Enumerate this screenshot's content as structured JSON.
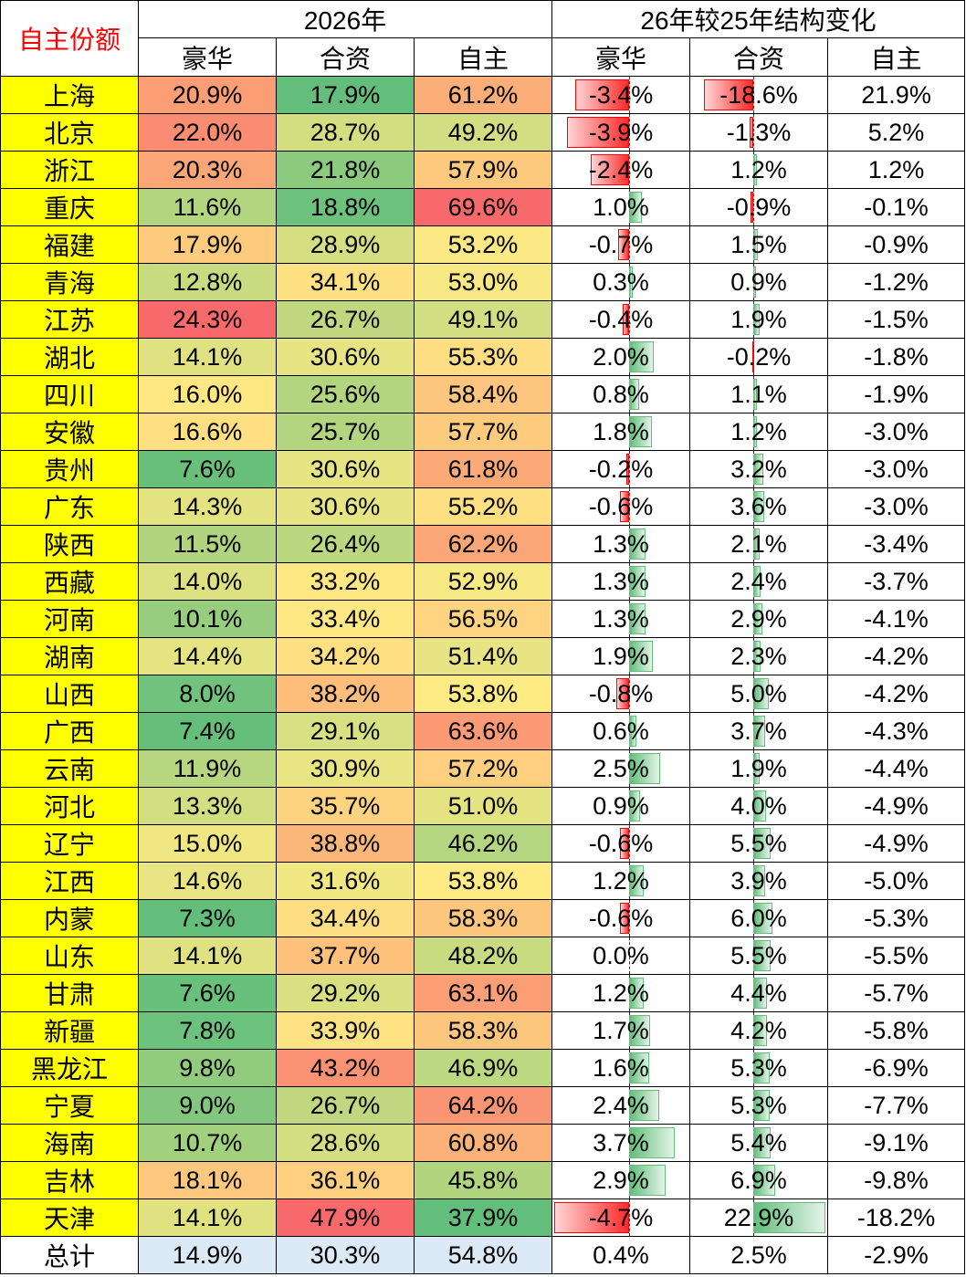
{
  "chart_data": {
    "type": "table",
    "corner_label": "自主份额",
    "group_headers": [
      "2026年",
      "26年较25年结构变化"
    ],
    "sub_headers": [
      "豪华",
      "合资",
      "自主",
      "豪华",
      "合资",
      "自主"
    ],
    "rows": [
      {
        "province": "上海",
        "lux": "20.9%",
        "jv": "17.9%",
        "own": "61.2%",
        "d_lux": "-3.4%",
        "d_jv": "-18.6%",
        "d_own": "21.9%"
      },
      {
        "province": "北京",
        "lux": "22.0%",
        "jv": "28.7%",
        "own": "49.2%",
        "d_lux": "-3.9%",
        "d_jv": "-1.3%",
        "d_own": "5.2%"
      },
      {
        "province": "浙江",
        "lux": "20.3%",
        "jv": "21.8%",
        "own": "57.9%",
        "d_lux": "-2.4%",
        "d_jv": "1.2%",
        "d_own": "1.2%"
      },
      {
        "province": "重庆",
        "lux": "11.6%",
        "jv": "18.8%",
        "own": "69.6%",
        "d_lux": "1.0%",
        "d_jv": "-0.9%",
        "d_own": "-0.1%"
      },
      {
        "province": "福建",
        "lux": "17.9%",
        "jv": "28.9%",
        "own": "53.2%",
        "d_lux": "-0.7%",
        "d_jv": "1.5%",
        "d_own": "-0.9%"
      },
      {
        "province": "青海",
        "lux": "12.8%",
        "jv": "34.1%",
        "own": "53.0%",
        "d_lux": "0.3%",
        "d_jv": "0.9%",
        "d_own": "-1.2%"
      },
      {
        "province": "江苏",
        "lux": "24.3%",
        "jv": "26.7%",
        "own": "49.1%",
        "d_lux": "-0.4%",
        "d_jv": "1.9%",
        "d_own": "-1.5%"
      },
      {
        "province": "湖北",
        "lux": "14.1%",
        "jv": "30.6%",
        "own": "55.3%",
        "d_lux": "2.0%",
        "d_jv": "-0.2%",
        "d_own": "-1.8%"
      },
      {
        "province": "四川",
        "lux": "16.0%",
        "jv": "25.6%",
        "own": "58.4%",
        "d_lux": "0.8%",
        "d_jv": "1.1%",
        "d_own": "-1.9%"
      },
      {
        "province": "安徽",
        "lux": "16.6%",
        "jv": "25.7%",
        "own": "57.7%",
        "d_lux": "1.8%",
        "d_jv": "1.2%",
        "d_own": "-3.0%"
      },
      {
        "province": "贵州",
        "lux": "7.6%",
        "jv": "30.6%",
        "own": "61.8%",
        "d_lux": "-0.2%",
        "d_jv": "3.2%",
        "d_own": "-3.0%"
      },
      {
        "province": "广东",
        "lux": "14.3%",
        "jv": "30.6%",
        "own": "55.2%",
        "d_lux": "-0.6%",
        "d_jv": "3.6%",
        "d_own": "-3.0%"
      },
      {
        "province": "陕西",
        "lux": "11.5%",
        "jv": "26.4%",
        "own": "62.2%",
        "d_lux": "1.3%",
        "d_jv": "2.1%",
        "d_own": "-3.4%"
      },
      {
        "province": "西藏",
        "lux": "14.0%",
        "jv": "33.2%",
        "own": "52.9%",
        "d_lux": "1.3%",
        "d_jv": "2.4%",
        "d_own": "-3.7%"
      },
      {
        "province": "河南",
        "lux": "10.1%",
        "jv": "33.4%",
        "own": "56.5%",
        "d_lux": "1.3%",
        "d_jv": "2.9%",
        "d_own": "-4.1%"
      },
      {
        "province": "湖南",
        "lux": "14.4%",
        "jv": "34.2%",
        "own": "51.4%",
        "d_lux": "1.9%",
        "d_jv": "2.3%",
        "d_own": "-4.2%"
      },
      {
        "province": "山西",
        "lux": "8.0%",
        "jv": "38.2%",
        "own": "53.8%",
        "d_lux": "-0.8%",
        "d_jv": "5.0%",
        "d_own": "-4.2%"
      },
      {
        "province": "广西",
        "lux": "7.4%",
        "jv": "29.1%",
        "own": "63.6%",
        "d_lux": "0.6%",
        "d_jv": "3.7%",
        "d_own": "-4.3%"
      },
      {
        "province": "云南",
        "lux": "11.9%",
        "jv": "30.9%",
        "own": "57.2%",
        "d_lux": "2.5%",
        "d_jv": "1.9%",
        "d_own": "-4.4%"
      },
      {
        "province": "河北",
        "lux": "13.3%",
        "jv": "35.7%",
        "own": "51.0%",
        "d_lux": "0.9%",
        "d_jv": "4.0%",
        "d_own": "-4.9%"
      },
      {
        "province": "辽宁",
        "lux": "15.0%",
        "jv": "38.8%",
        "own": "46.2%",
        "d_lux": "-0.6%",
        "d_jv": "5.5%",
        "d_own": "-4.9%"
      },
      {
        "province": "江西",
        "lux": "14.6%",
        "jv": "31.6%",
        "own": "53.8%",
        "d_lux": "1.2%",
        "d_jv": "3.9%",
        "d_own": "-5.0%"
      },
      {
        "province": "内蒙",
        "lux": "7.3%",
        "jv": "34.4%",
        "own": "58.3%",
        "d_lux": "-0.6%",
        "d_jv": "6.0%",
        "d_own": "-5.3%"
      },
      {
        "province": "山东",
        "lux": "14.1%",
        "jv": "37.7%",
        "own": "48.2%",
        "d_lux": "0.0%",
        "d_jv": "5.5%",
        "d_own": "-5.5%"
      },
      {
        "province": "甘肃",
        "lux": "7.6%",
        "jv": "29.2%",
        "own": "63.1%",
        "d_lux": "1.2%",
        "d_jv": "4.4%",
        "d_own": "-5.7%"
      },
      {
        "province": "新疆",
        "lux": "7.8%",
        "jv": "33.9%",
        "own": "58.3%",
        "d_lux": "1.7%",
        "d_jv": "4.2%",
        "d_own": "-5.8%"
      },
      {
        "province": "黑龙江",
        "lux": "9.8%",
        "jv": "43.2%",
        "own": "46.9%",
        "d_lux": "1.6%",
        "d_jv": "5.3%",
        "d_own": "-6.9%"
      },
      {
        "province": "宁夏",
        "lux": "9.0%",
        "jv": "26.7%",
        "own": "64.2%",
        "d_lux": "2.4%",
        "d_jv": "5.3%",
        "d_own": "-7.7%"
      },
      {
        "province": "海南",
        "lux": "10.7%",
        "jv": "28.6%",
        "own": "60.8%",
        "d_lux": "3.7%",
        "d_jv": "5.4%",
        "d_own": "-9.1%"
      },
      {
        "province": "吉林",
        "lux": "18.1%",
        "jv": "36.1%",
        "own": "45.8%",
        "d_lux": "2.9%",
        "d_jv": "6.9%",
        "d_own": "-9.8%"
      },
      {
        "province": "天津",
        "lux": "14.1%",
        "jv": "47.9%",
        "own": "37.9%",
        "d_lux": "-4.7%",
        "d_jv": "22.9%",
        "d_own": "-18.2%"
      }
    ],
    "total": {
      "province": "总计",
      "lux": "14.9%",
      "jv": "30.3%",
      "own": "54.8%",
      "d_lux": "0.4%",
      "d_jv": "2.5%",
      "d_own": "-2.9%"
    },
    "colors": {
      "province_bg": "#ffff00",
      "corner_text": "#ff0000",
      "scale_low": "#63be7b",
      "scale_mid": "#ffeb84",
      "scale_high": "#f8696b",
      "bar_negative": "#ff0000",
      "bar_positive": "#63be7b"
    }
  }
}
